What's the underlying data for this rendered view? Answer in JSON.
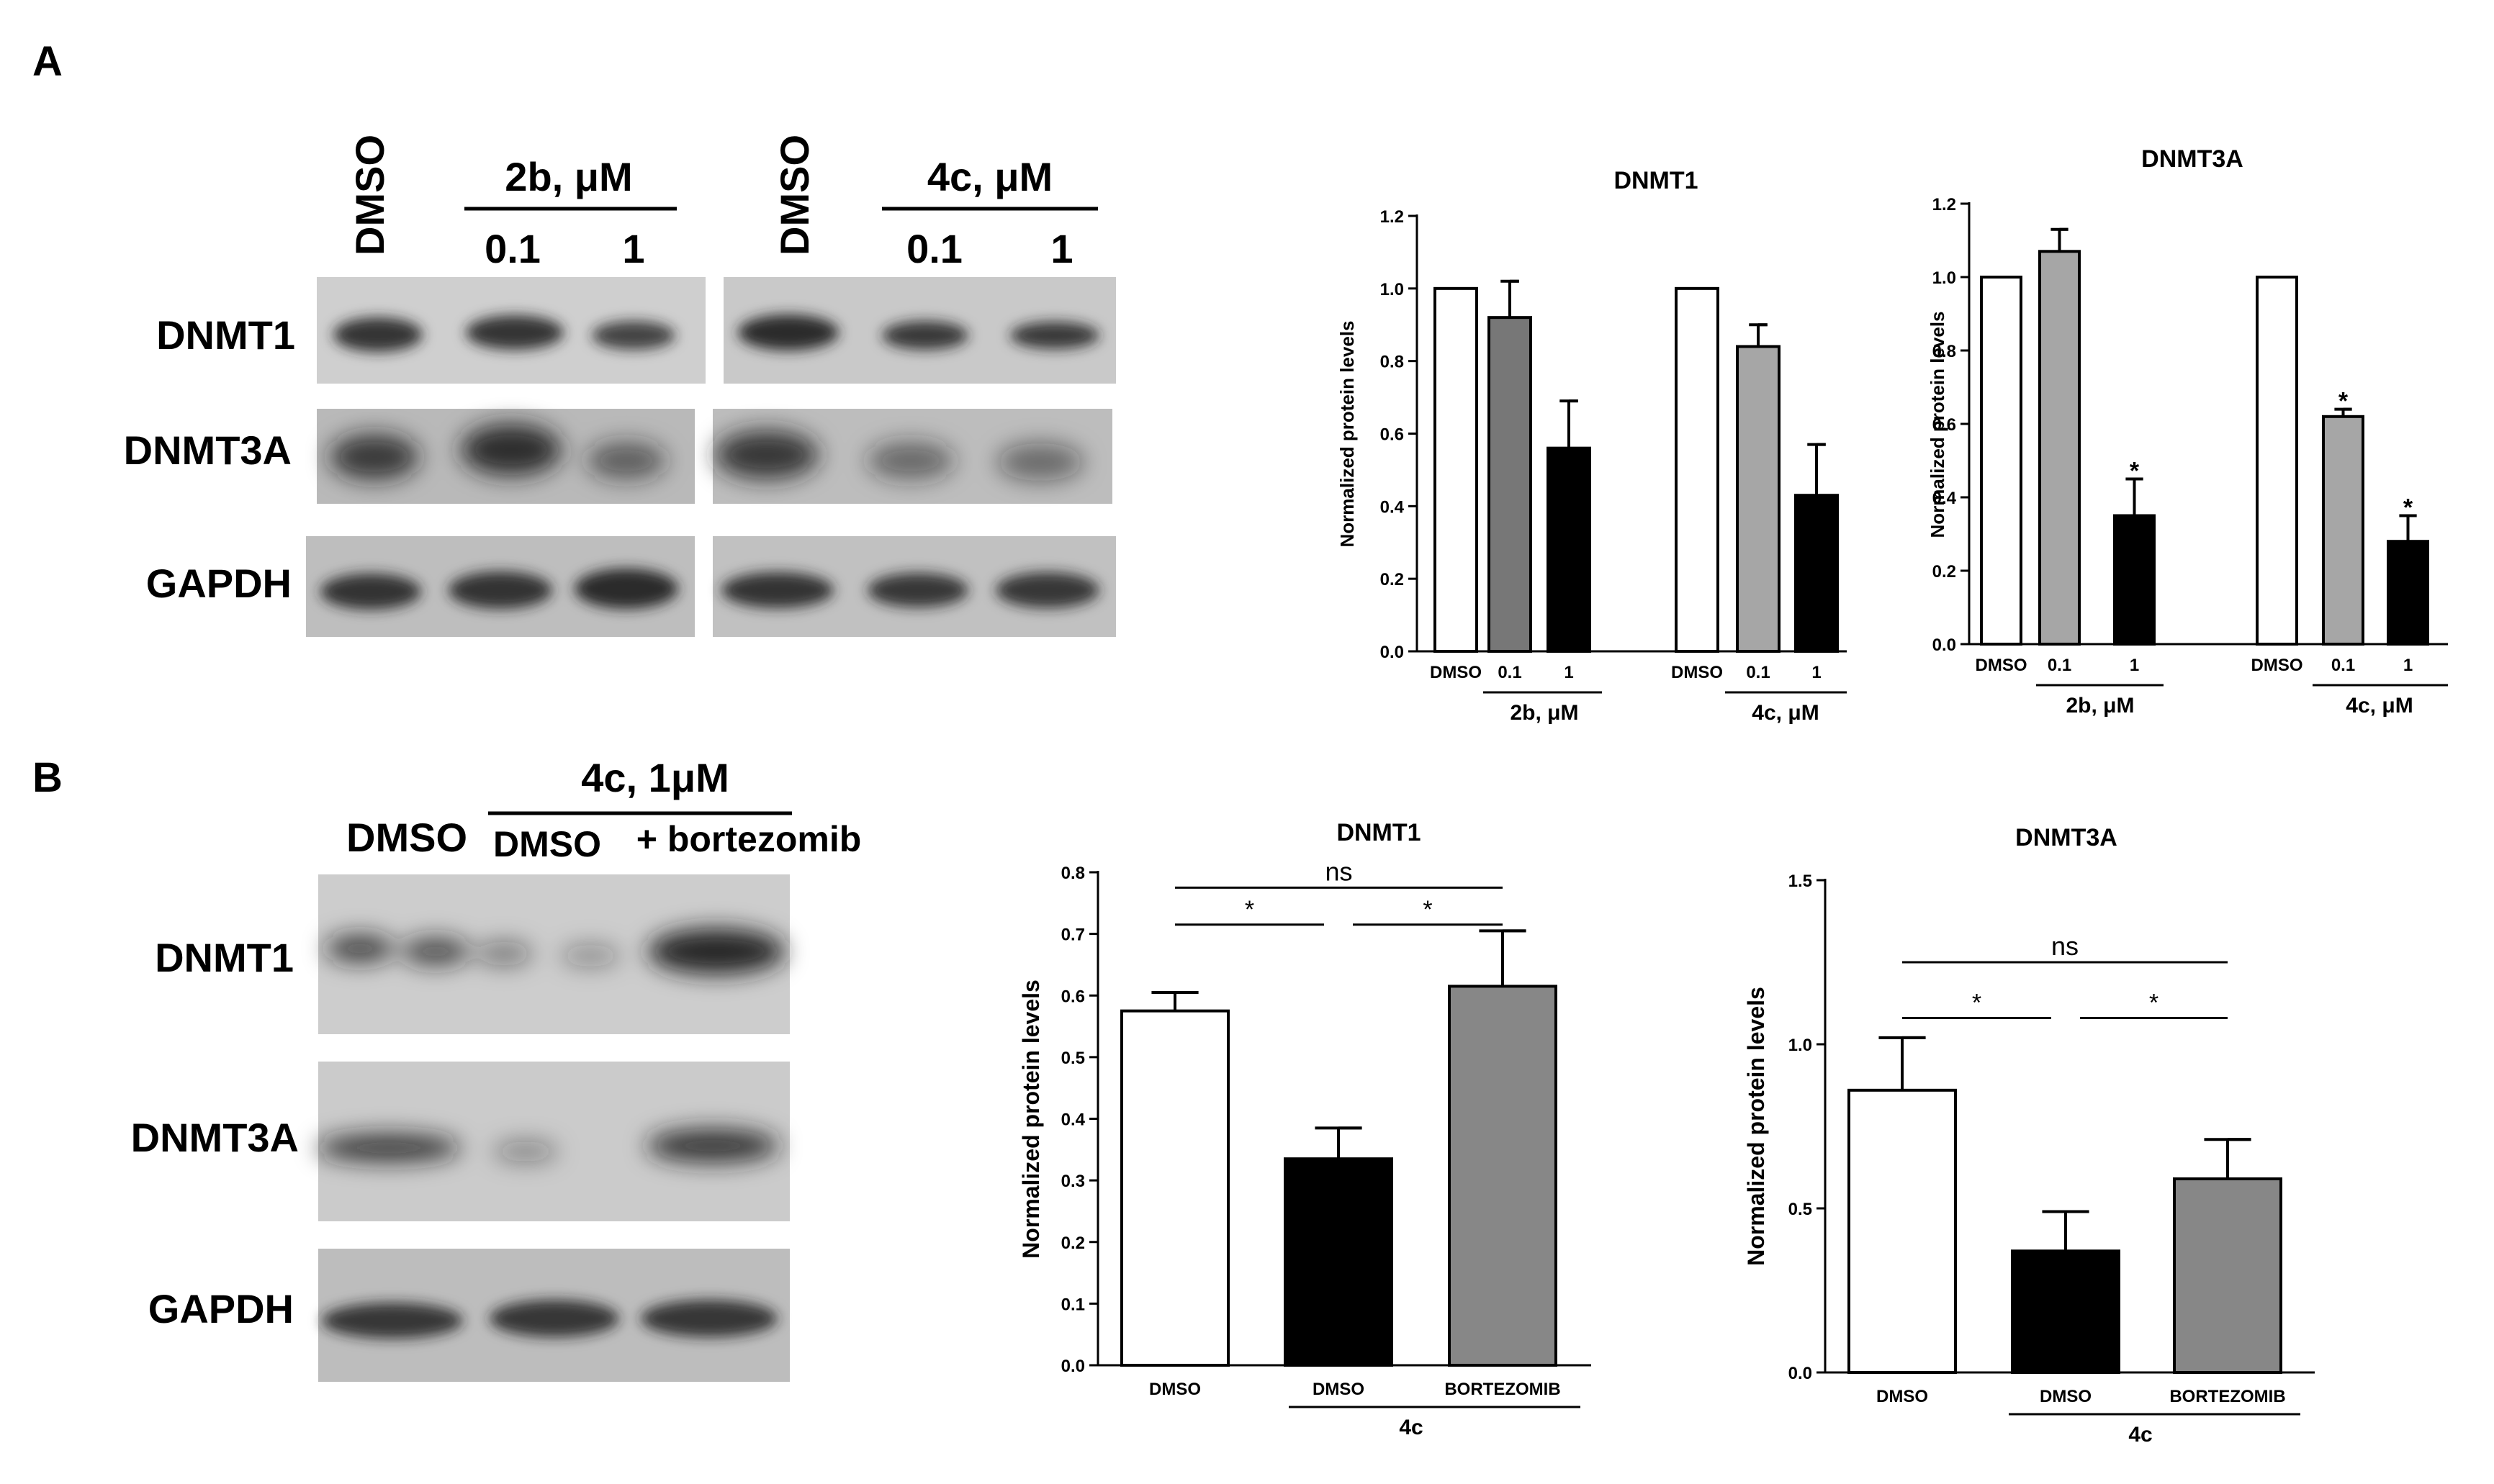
{
  "panels": {
    "A": {
      "letter": "A",
      "blot": {
        "left_group": {
          "control": "DMSO",
          "treatment": "2b, μM",
          "doses": [
            "0.1",
            "1"
          ]
        },
        "right_group": {
          "control": "DMSO",
          "treatment": "4c, μM",
          "doses": [
            "0.1",
            "1"
          ]
        },
        "rows": [
          "DNMT1",
          "DNMT3A",
          "GAPDH"
        ]
      }
    },
    "B": {
      "letter": "B",
      "blot": {
        "control": "DMSO",
        "treatment": "4c, 1μM",
        "sub_labels": [
          "DMSO",
          "+ bortezomib"
        ],
        "rows": [
          "DNMT1",
          "DNMT3A",
          "GAPDH"
        ]
      }
    }
  },
  "colors": {
    "white_bar": "#ffffff",
    "dark_gray_bar": "#777777",
    "light_gray_bar": "#a6a6a6",
    "mid_gray_bar": "#878787",
    "black_bar": "#000000"
  },
  "chart_data": [
    {
      "id": "A-DNMT1",
      "type": "bar",
      "title": "DNMT1",
      "ylabel": "Normalized protein levels",
      "ylim": [
        0,
        1.2
      ],
      "yticks": [
        "0.0",
        "0.2",
        "0.4",
        "0.6",
        "0.8",
        "1.0",
        "1.2"
      ],
      "categories": [
        "DMSO",
        "0.1",
        "1",
        "DMSO",
        "0.1",
        "1"
      ],
      "values": [
        1.0,
        0.92,
        0.56,
        1.0,
        0.84,
        0.43
      ],
      "errors": [
        0,
        0.1,
        0.13,
        0,
        0.06,
        0.14
      ],
      "significance": [
        "",
        "",
        "",
        "",
        "",
        ""
      ],
      "group_labels": [
        "2b, μM",
        "4c, μM"
      ]
    },
    {
      "id": "A-DNMT3A",
      "type": "bar",
      "title": "DNMT3A",
      "ylabel": "Normalized protein levels",
      "ylim": [
        0,
        1.2
      ],
      "yticks": [
        "0.0",
        "0.2",
        "0.4",
        "0.6",
        "0.8",
        "1.0",
        "1.2"
      ],
      "categories": [
        "DMSO",
        "0.1",
        "1",
        "DMSO",
        "0.1",
        "1"
      ],
      "values": [
        1.0,
        1.07,
        0.35,
        1.0,
        0.62,
        0.28
      ],
      "errors": [
        0,
        0.06,
        0.1,
        0,
        0.02,
        0.07
      ],
      "significance": [
        "",
        "",
        "*",
        "",
        "*",
        "*"
      ],
      "group_labels": [
        "2b, μM",
        "4c,  μM"
      ]
    },
    {
      "id": "B-DNMT1",
      "type": "bar",
      "title": "DNMT1",
      "ylabel": "Normalized protein levels",
      "ylim": [
        0,
        0.8
      ],
      "yticks": [
        "0.0",
        "0.1",
        "0.2",
        "0.3",
        "0.4",
        "0.5",
        "0.6",
        "0.7",
        "0.8"
      ],
      "categories": [
        "DMSO",
        "DMSO",
        "BORTEZOMIB"
      ],
      "values": [
        0.575,
        0.335,
        0.615
      ],
      "errors": [
        0.03,
        0.05,
        0.09
      ],
      "group_label": "4c",
      "comparisons": [
        {
          "from": 0,
          "to": 2,
          "label": "ns",
          "y": 0.775
        },
        {
          "from": 0,
          "to": 1,
          "label": "*",
          "y": 0.715
        },
        {
          "from": 1,
          "to": 2,
          "label": "*",
          "y": 0.715
        }
      ]
    },
    {
      "id": "B-DNMT3A",
      "type": "bar",
      "title": "DNMT3A",
      "ylabel": "Normalized protein levels",
      "ylim": [
        0,
        1.5
      ],
      "yticks": [
        "0.0",
        "0.5",
        "1.0",
        "1.5"
      ],
      "categories": [
        "DMSO",
        "DMSO",
        "BORTEZOMIB"
      ],
      "values": [
        0.86,
        0.37,
        0.59
      ],
      "errors": [
        0.16,
        0.12,
        0.12
      ],
      "group_label": "4c",
      "comparisons": [
        {
          "from": 0,
          "to": 2,
          "label": "ns",
          "y": 1.25
        },
        {
          "from": 0,
          "to": 1,
          "label": "*",
          "y": 1.08
        },
        {
          "from": 1,
          "to": 2,
          "label": "*",
          "y": 1.08
        }
      ]
    }
  ]
}
